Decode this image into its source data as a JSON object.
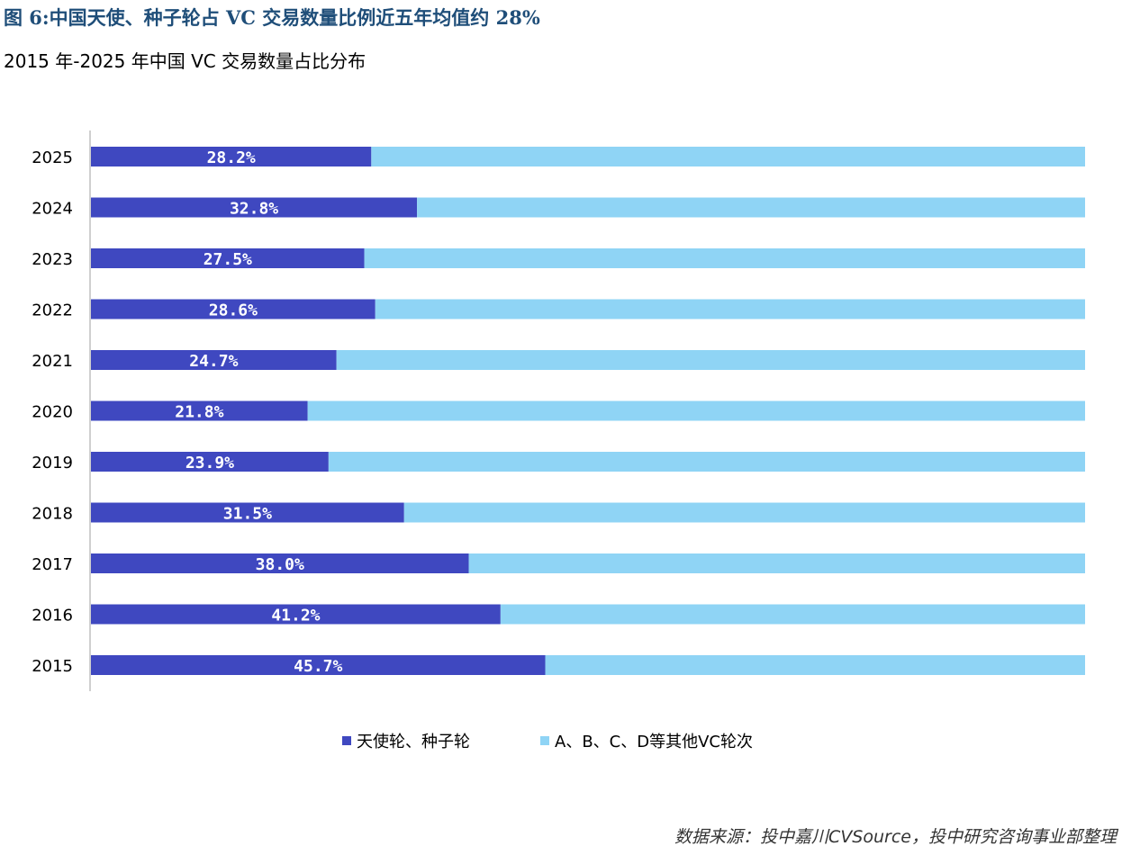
{
  "figure_title": "图 6:中国天使、种子轮占 VC 交易数量比例近五年均值约 28%",
  "source_note": "数据来源：投中嘉川CVSource，投中研究咨询事业部整理",
  "colors": {
    "seed": "#3f48c0",
    "other": "#8fd4f5",
    "axis": "#bfbfbf",
    "title": "#1f4e79"
  },
  "chart_data": {
    "type": "bar",
    "orientation": "horizontal",
    "stacked": true,
    "title": "2015 年-2025 年中国 VC 交易数量占比分布",
    "xlabel": "",
    "ylabel": "",
    "xlim": [
      0,
      100
    ],
    "grid": false,
    "legend_position": "bottom",
    "categories": [
      "2025",
      "2024",
      "2023",
      "2022",
      "2021",
      "2020",
      "2019",
      "2018",
      "2017",
      "2016",
      "2015"
    ],
    "series": [
      {
        "name": "天使轮、种子轮",
        "values": [
          28.2,
          32.8,
          27.5,
          28.6,
          24.7,
          21.8,
          23.9,
          31.5,
          38.0,
          41.2,
          45.7
        ],
        "labels": [
          "28.2%",
          "32.8%",
          "27.5%",
          "28.6%",
          "24.7%",
          "21.8%",
          "23.9%",
          "31.5%",
          "38.0%",
          "41.2%",
          "45.7%"
        ]
      },
      {
        "name": "A、B、C、D等其他VC轮次",
        "values": [
          71.8,
          67.2,
          72.5,
          71.4,
          75.3,
          78.2,
          76.1,
          68.5,
          62.0,
          58.8,
          54.3
        ]
      }
    ]
  }
}
